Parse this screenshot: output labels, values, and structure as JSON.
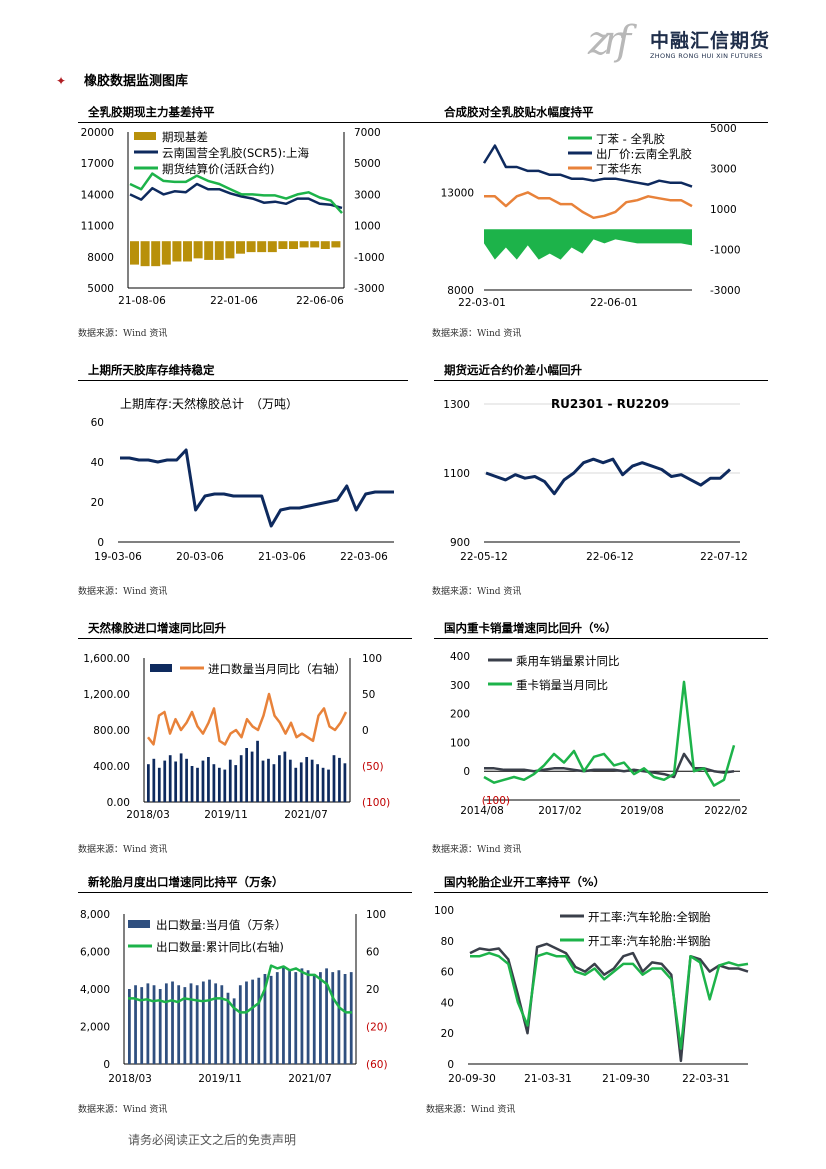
{
  "header": {
    "logo_mark": "zrf",
    "logo_cn": "中融汇信期货",
    "logo_en": "ZHONG RONG HUI XIN FUTURES"
  },
  "section": {
    "title": "橡胶数据监测图库",
    "bullet": "✦"
  },
  "footer": {
    "text": "请务必阅读正文之后的免责声明"
  },
  "colors": {
    "navy": "#0e2a5e",
    "green": "#1db34a",
    "orange": "#e8823a",
    "gold": "#b8900a",
    "red": "#c00000"
  },
  "panels": [
    {
      "title": "全乳胶期现主力基差持平",
      "source": "数据来源：Wind 资讯",
      "chart_data": {
        "type": "line",
        "series": [
          {
            "name": "期现基差",
            "kind": "bar",
            "axis": "right"
          },
          {
            "name": "云南国营全乳胶(SCR5):上海",
            "kind": "line",
            "axis": "left",
            "values": [
              14000,
              13500,
              14600,
              14000,
              14300,
              14200,
              15000,
              14500,
              14500,
              14100,
              13800,
              13600,
              13200,
              13300,
              13100,
              13600,
              13600,
              13100,
              13000,
              12700
            ]
          },
          {
            "name": "期货结算价(活跃合约)",
            "kind": "line",
            "axis": "left",
            "values": [
              15000,
              14500,
              16000,
              15300,
              15200,
              15200,
              15800,
              15300,
              15000,
              14500,
              14000,
              14000,
              13900,
              13900,
              13600,
              14000,
              14200,
              13700,
              13400,
              12200
            ]
          }
        ],
        "basis_values": [
          -1500,
          -1600,
          -1600,
          -1500,
          -1300,
          -1300,
          -1100,
          -1200,
          -1200,
          -1100,
          -800,
          -700,
          -700,
          -700,
          -500,
          -500,
          -400,
          -400,
          -500,
          -400
        ],
        "y_left": [
          5000,
          8000,
          11000,
          14000,
          17000,
          20000
        ],
        "y_right": [
          -3000,
          -1000,
          1000,
          3000,
          5000,
          7000
        ],
        "x_ticks": [
          "21-08-06",
          "22-01-06",
          "22-06-06"
        ]
      }
    },
    {
      "title": "合成胶对全乳胶贴水幅度持平",
      "source": "数据来源：Wind 资讯",
      "chart_data": {
        "type": "line",
        "series": [
          {
            "name": "丁苯 - 全乳胶",
            "kind": "area",
            "axis": "right",
            "values": [
              -700,
              -1500,
              -900,
              -1500,
              -800,
              -1500,
              -1200,
              -1500,
              -900,
              -1200,
              -500,
              -700,
              -500,
              -600,
              -700,
              -700,
              -700,
              -700,
              -700,
              -800
            ]
          },
          {
            "name": "出厂价:云南全乳胶",
            "kind": "line",
            "axis": "left",
            "values": [
              14500,
              15400,
              14300,
              14300,
              14100,
              14100,
              13900,
              13900,
              13700,
              13700,
              13600,
              13700,
              13700,
              13600,
              13500,
              13400,
              13600,
              13500,
              13500,
              13300
            ]
          },
          {
            "name": "丁苯华东",
            "kind": "line",
            "axis": "left",
            "values": [
              12800,
              12800,
              12300,
              12800,
              13000,
              12700,
              12700,
              12400,
              12400,
              12000,
              11700,
              11800,
              12000,
              12500,
              12600,
              12800,
              12700,
              12600,
              12600,
              12300
            ]
          }
        ],
        "y_left": [
          8000,
          13000
        ],
        "y_right": [
          -3000,
          -1000,
          1000,
          3000,
          5000
        ],
        "x_ticks": [
          "22-03-01",
          "22-06-01"
        ]
      }
    },
    {
      "title": "上期所天胶库存维持稳定",
      "source": "数据来源：Wind 资讯",
      "chart_data": {
        "type": "line",
        "title": "上期库存:天然橡胶总计　（万吨）",
        "series": [
          {
            "name": "上期库存:天然橡胶总计",
            "values": [
              42,
              42,
              41,
              41,
              40,
              41,
              41,
              46,
              16,
              23,
              24,
              24,
              23,
              23,
              23,
              23,
              8,
              16,
              17,
              17,
              18,
              19,
              20,
              21,
              28,
              16,
              24,
              25,
              25,
              25
            ]
          }
        ],
        "y_ticks": [
          0,
          20,
          40,
          60
        ],
        "x_ticks": [
          "19-03-06",
          "20-03-06",
          "21-03-06",
          "22-03-06"
        ]
      }
    },
    {
      "title": "期货远近合约价差小幅回升",
      "source": "数据来源：Wind 资讯",
      "chart_data": {
        "type": "line",
        "title": "RU2301 - RU2209",
        "series": [
          {
            "name": "RU2301 - RU2209",
            "values": [
              1100,
              1090,
              1080,
              1095,
              1085,
              1090,
              1075,
              1040,
              1080,
              1100,
              1130,
              1140,
              1130,
              1140,
              1095,
              1120,
              1130,
              1120,
              1110,
              1090,
              1095,
              1080,
              1065,
              1085,
              1085,
              1110
            ]
          }
        ],
        "y_ticks": [
          900,
          1100,
          1300
        ],
        "x_ticks": [
          "22-05-12",
          "22-06-12",
          "22-07-12"
        ]
      }
    },
    {
      "title": "天然橡胶进口增速同比回升",
      "source": "数据来源：Wind 资讯",
      "chart_data": {
        "type": "bar",
        "series": [
          {
            "name": "进口数量",
            "kind": "bar",
            "axis": "left",
            "values": [
              420,
              480,
              380,
              460,
              520,
              450,
              540,
              480,
              400,
              380,
              460,
              500,
              420,
              380,
              360,
              470,
              410,
              520,
              600,
              560,
              680,
              460,
              480,
              420,
              520,
              560,
              470,
              380,
              440,
              500,
              470,
              420,
              380,
              360,
              520,
              490,
              430
            ]
          },
          {
            "name": "进口数量当月同比（右轴）",
            "kind": "line",
            "axis": "right",
            "values": [
              -10,
              -20,
              20,
              25,
              -5,
              15,
              0,
              10,
              25,
              5,
              -5,
              10,
              30,
              -15,
              -20,
              -5,
              0,
              -10,
              15,
              5,
              0,
              20,
              50,
              20,
              10,
              -5,
              10,
              -10,
              -5,
              -10,
              -15,
              20,
              30,
              5,
              0,
              10,
              25
            ]
          }
        ],
        "y_left": [
          "0.00",
          "400.00",
          "800.00",
          "1,200.00",
          "1,600.00"
        ],
        "y_right": [
          "(100)",
          "(50)",
          "0",
          "50",
          "100"
        ],
        "x_ticks": [
          "2018/03",
          "2019/11",
          "2021/07"
        ]
      }
    },
    {
      "title": "国内重卡销量增速同比回升（%）",
      "source": "数据来源：Wind 资讯",
      "chart_data": {
        "type": "line",
        "series": [
          {
            "name": "乘用车销量累计同比",
            "values": [
              10,
              10,
              5,
              5,
              5,
              0,
              5,
              10,
              10,
              5,
              0,
              5,
              5,
              5,
              0,
              5,
              0,
              -5,
              -10,
              -20,
              60,
              10,
              10,
              0,
              -5,
              0
            ]
          },
          {
            "name": "重卡销量当月同比",
            "values": [
              -20,
              -40,
              -30,
              -20,
              -30,
              -10,
              20,
              60,
              30,
              70,
              0,
              50,
              60,
              20,
              30,
              -10,
              10,
              -20,
              -30,
              -10,
              310,
              0,
              10,
              -50,
              -30,
              90
            ]
          }
        ],
        "y_ticks": [
          "(100)",
          "0",
          "100",
          "200",
          "300",
          "400"
        ],
        "x_ticks": [
          "2014/08",
          "2017/02",
          "2019/08",
          "2022/02"
        ]
      }
    },
    {
      "title": "新轮胎月度出口增速同比持平（万条）",
      "source": "数据来源：Wind 资讯",
      "chart_data": {
        "type": "bar",
        "series": [
          {
            "name": "出口数量:当月值（万条）",
            "kind": "bar",
            "axis": "left",
            "values": [
              4000,
              4200,
              4100,
              4300,
              4200,
              4000,
              4300,
              4400,
              4200,
              4100,
              4300,
              4200,
              4400,
              4500,
              4300,
              4200,
              3800,
              3500,
              4200,
              4400,
              4500,
              4600,
              4800,
              4700,
              4900,
              5200,
              5000,
              4900,
              5100,
              5000,
              4800,
              4900,
              5100,
              4900,
              5000,
              4800,
              4900
            ]
          },
          {
            "name": "出口数量:累计同比(右轴)",
            "kind": "line",
            "axis": "right",
            "values": [
              10,
              10,
              8,
              9,
              7,
              8,
              6,
              8,
              6,
              10,
              9,
              8,
              7,
              8,
              10,
              10,
              8,
              0,
              -5,
              -5,
              0,
              5,
              20,
              45,
              42,
              44,
              40,
              42,
              38,
              35,
              35,
              30,
              25,
              10,
              0,
              -5,
              -5
            ]
          }
        ],
        "y_left": [
          "0",
          "2,000",
          "4,000",
          "6,000",
          "8,000"
        ],
        "y_right": [
          "(60)",
          "(20)",
          "20",
          "60",
          "100"
        ],
        "x_ticks": [
          "2018/03",
          "2019/11",
          "2021/07"
        ]
      }
    },
    {
      "title": "国内轮胎企业开工率持平（%）",
      "source": "数据来源：Wind 资讯",
      "chart_data": {
        "type": "line",
        "series": [
          {
            "name": "开工率:汽车轮胎:全钢胎",
            "values": [
              72,
              75,
              74,
              75,
              68,
              45,
              20,
              76,
              78,
              75,
              72,
              63,
              60,
              65,
              58,
              62,
              70,
              72,
              60,
              66,
              65,
              58,
              2,
              70,
              68,
              60,
              64,
              62,
              62,
              60
            ]
          },
          {
            "name": "开工率:汽车轮胎:半钢胎",
            "values": [
              70,
              70,
              72,
              70,
              65,
              40,
              25,
              70,
              72,
              70,
              70,
              60,
              58,
              62,
              55,
              60,
              65,
              65,
              58,
              62,
              62,
              55,
              10,
              70,
              66,
              42,
              64,
              66,
              64,
              65
            ]
          }
        ],
        "y_ticks": [
          0,
          20,
          40,
          60,
          80,
          100
        ],
        "x_ticks": [
          "20-09-30",
          "21-03-31",
          "21-09-30",
          "22-03-31"
        ]
      }
    }
  ]
}
